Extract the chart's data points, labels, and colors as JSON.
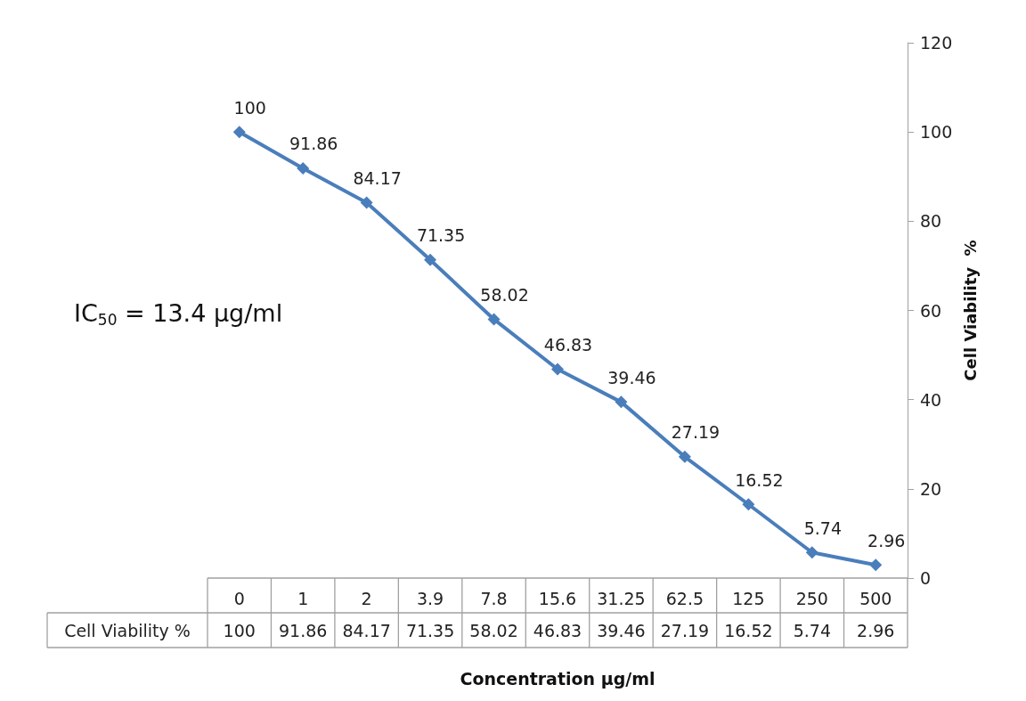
{
  "chart_data": {
    "type": "line",
    "xlabel": "Concentration µg/ml",
    "ylabel": "Cell Viability  %",
    "categories": [
      "0",
      "1",
      "2",
      "3.9",
      "7.8",
      "15.6",
      "31.25",
      "62.5",
      "125",
      "250",
      "500"
    ],
    "series": [
      {
        "name": "Cell Viability %",
        "color": "#4a7ebb",
        "values": [
          100,
          91.86,
          84.17,
          71.35,
          58.02,
          46.83,
          39.46,
          27.19,
          16.52,
          5.74,
          2.96
        ]
      }
    ],
    "ylim": [
      0,
      120
    ],
    "yticks": [
      0,
      20,
      40,
      60,
      80,
      100,
      120
    ],
    "grid": false,
    "legend": false,
    "data_labels": true,
    "marker": "diamond",
    "line_style": "solid",
    "annotations": [
      "IC$_{50}$ = 13.4 µg/ml",
      "100",
      "91.86",
      "84.17",
      "71.35",
      "58.02",
      "46.83",
      "39.46",
      "27.19",
      "16.52",
      "5.74",
      "2.96"
    ]
  }
}
